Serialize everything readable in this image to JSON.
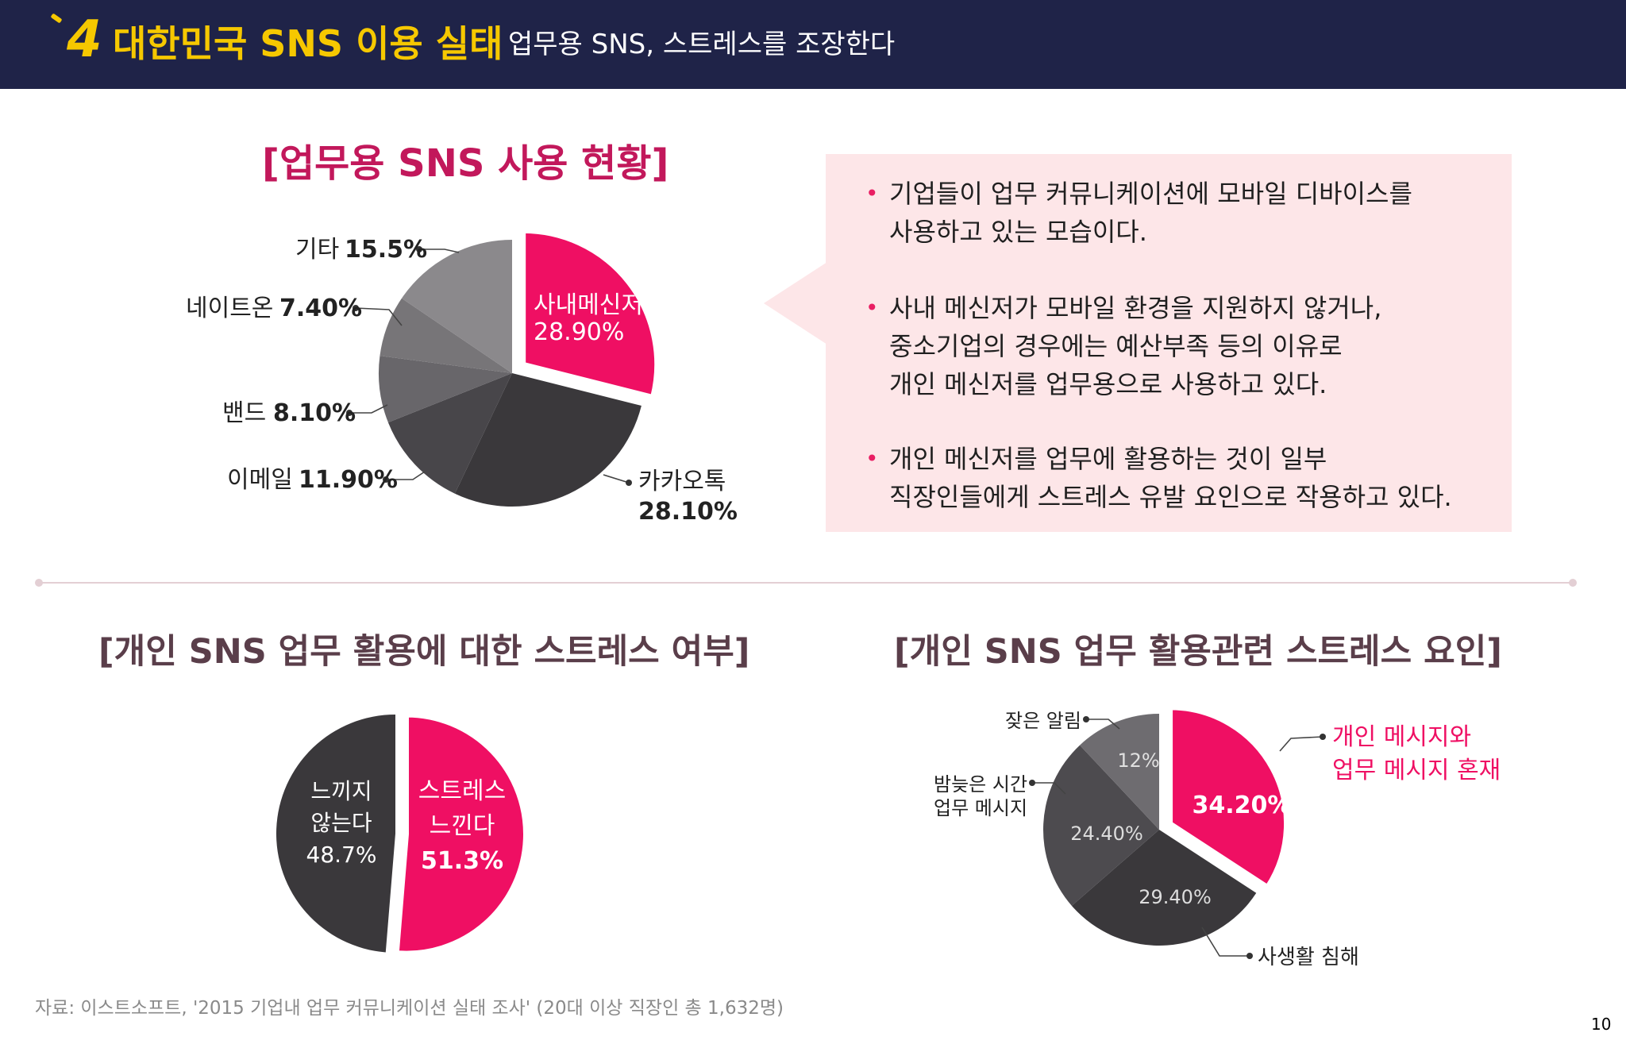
{
  "header": {
    "number": "4",
    "title": "대한민국 SNS 이용 실태",
    "subtitle": "업무용 SNS, 스트레스를 조장한다"
  },
  "colors": {
    "header_bg": "#1f2348",
    "accent_yellow": "#f6c800",
    "accent_pink": "#ef0f63",
    "callout_bg": "#fde6e8"
  },
  "callout": {
    "bullets": [
      {
        "lines": [
          "기업들이 업무 커뮤니케이션에 모바일 디바이스를",
          "사용하고 있는 모습이다."
        ]
      },
      {
        "lines": [
          "사내 메신저가 모바일 환경을 지원하지 않거나,",
          "중소기업의 경우에는 예산부족 등의 이유로",
          "개인 메신저를 업무용으로 사용하고 있다."
        ]
      },
      {
        "lines": [
          "개인 메신저를 업무에 활용하는 것이 일부",
          "직장인들에게 스트레스 유발 요인으로 작용하고 있다."
        ]
      }
    ]
  },
  "chart_data": [
    {
      "type": "pie",
      "title": "[업무용 SNS 사용 현황]",
      "slices": [
        {
          "name": "사내메신저",
          "value": 28.9,
          "label": "28.90%",
          "color": "#ef0f63",
          "exploded": true
        },
        {
          "name": "카카오톡",
          "value": 28.1,
          "label": "28.10%",
          "color": "#3a383b"
        },
        {
          "name": "이메일",
          "value": 11.9,
          "label": "11.90%",
          "color": "#48464a"
        },
        {
          "name": "밴드",
          "value": 8.1,
          "label": "8.10%",
          "color": "#68666a"
        },
        {
          "name": "네이트온",
          "value": 7.4,
          "label": "7.40%",
          "color": "#777578"
        },
        {
          "name": "기타",
          "value": 15.5,
          "label": "15.5%",
          "color": "#8b898c"
        }
      ]
    },
    {
      "type": "pie",
      "title": "[개인 SNS 업무 활용에 대한 스트레스 여부]",
      "slices": [
        {
          "name_lines": [
            "스트레스",
            "느낀다"
          ],
          "value": 51.3,
          "label": "51.3%",
          "color": "#ef0f63",
          "exploded": true
        },
        {
          "name_lines": [
            "느끼지",
            "않는다"
          ],
          "value": 48.7,
          "label": "48.7%",
          "color": "#3a383b"
        }
      ]
    },
    {
      "type": "pie",
      "title": "[개인 SNS 업무 활용관련 스트레스 요인]",
      "slices": [
        {
          "name_lines": [
            "개인 메시지와",
            "업무 메시지 혼재"
          ],
          "value": 34.2,
          "label": "34.20%",
          "color": "#ef0f63",
          "exploded": true
        },
        {
          "name_lines": [
            "사생활 침해"
          ],
          "value": 29.4,
          "label": "29.40%",
          "color": "#3a383b"
        },
        {
          "name_lines": [
            "밤늦은 시간",
            "업무 메시지"
          ],
          "value": 24.4,
          "label": "24.40%",
          "color": "#4d4b4f"
        },
        {
          "name_lines": [
            "잦은 알림"
          ],
          "value": 12.0,
          "label": "12%",
          "color": "#6e6c70"
        }
      ]
    }
  ],
  "source": "자료: 이스트소프트, '2015 기업내 업무 커뮤니케이션 실태 조사' (20대 이상 직장인 총 1,632명)",
  "page_number": "10"
}
